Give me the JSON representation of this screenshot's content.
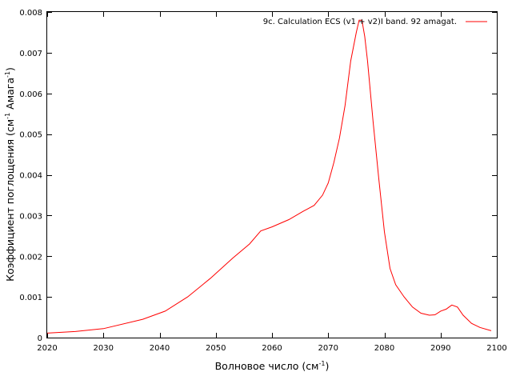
{
  "chart_data": {
    "type": "line",
    "title": "",
    "xlabel": "Волновое число (см",
    "xlabel_sup": "-1",
    "xlabel_tail": ")",
    "ylabel": "Коэффициент поглощения (см",
    "ylabel_sup1": "-1",
    "ylabel_mid": " Амага",
    "ylabel_sup2": "-1",
    "ylabel_tail": ")",
    "xlim": [
      2020,
      2100
    ],
    "ylim": [
      0,
      0.008
    ],
    "xticks": [
      2020,
      2030,
      2040,
      2050,
      2060,
      2070,
      2080,
      2090,
      2100
    ],
    "xtick_labels": [
      "2020",
      "2030",
      "2040",
      "2050",
      "2060",
      "2070",
      "2080",
      "2090",
      "2100"
    ],
    "yticks": [
      0,
      0.001,
      0.002,
      0.003,
      0.004,
      0.005,
      0.006,
      0.007,
      0.008
    ],
    "ytick_labels": [
      "0",
      "0.001",
      "0.002",
      "0.003",
      "0.004",
      "0.005",
      "0.006",
      "0.007",
      "0.008"
    ],
    "grid": false,
    "legend_position": "top-right",
    "series": [
      {
        "name": "9c. Calculation ECS (v1 + v2)I band. 92 amagat.",
        "color": "#ff0000",
        "x": [
          2020,
          2025,
          2030,
          2037,
          2041,
          2045,
          2049,
          2053,
          2056,
          2058,
          2060,
          2063,
          2065.5,
          2067.5,
          2069,
          2070,
          2071,
          2072,
          2073,
          2074,
          2075,
          2075.5,
          2076,
          2076.5,
          2077,
          2078,
          2079,
          2080,
          2081,
          2082,
          2083.5,
          2085,
          2086.5,
          2088,
          2089,
          2090,
          2091,
          2091.5,
          2092,
          2093,
          2094,
          2095.5,
          2097,
          2099
        ],
        "y": [
          0.00011,
          0.00015,
          0.00022,
          0.00045,
          0.00065,
          0.001,
          0.00145,
          0.00195,
          0.0023,
          0.00262,
          0.00272,
          0.0029,
          0.0031,
          0.00325,
          0.0035,
          0.0038,
          0.0043,
          0.0049,
          0.0057,
          0.0068,
          0.0075,
          0.0078,
          0.0078,
          0.0074,
          0.0068,
          0.0053,
          0.0039,
          0.0026,
          0.0017,
          0.0013,
          0.001,
          0.00075,
          0.0006,
          0.00055,
          0.00056,
          0.00065,
          0.0007,
          0.00075,
          0.0008,
          0.00075,
          0.00055,
          0.00035,
          0.00025,
          0.00017
        ]
      }
    ]
  }
}
